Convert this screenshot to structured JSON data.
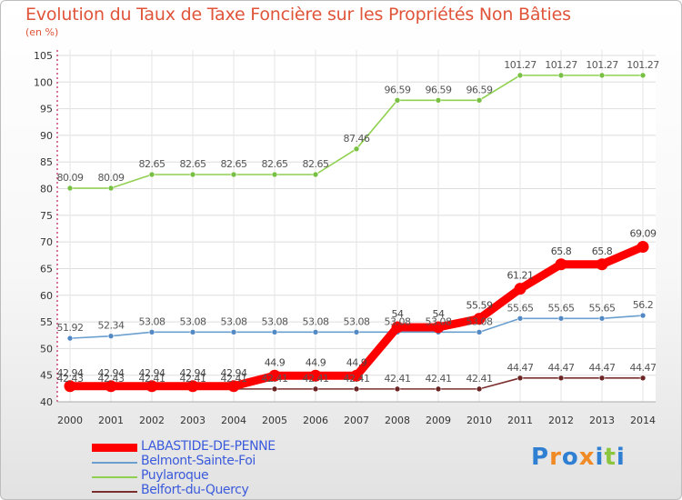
{
  "chart_data": {
    "type": "line",
    "title": "Evolution du Taux de Taxe Foncière sur les Propriétés Non Bâties",
    "subtitle": "(en %)",
    "xlabel": "",
    "ylabel": "",
    "ylim": [
      40,
      105
    ],
    "yticks": [
      40,
      45,
      50,
      55,
      60,
      65,
      70,
      75,
      80,
      85,
      90,
      95,
      100,
      105
    ],
    "grid": true,
    "categories": [
      "2000",
      "2001",
      "2002",
      "2003",
      "2004",
      "2005",
      "2006",
      "2007",
      "2008",
      "2009",
      "2010",
      "2011",
      "2012",
      "2013",
      "2014"
    ],
    "series": [
      {
        "name": "Puylaroque",
        "color": "#8fd14f",
        "point_color": "#78c043",
        "label_color": "#555555",
        "emphasis": false,
        "values": [
          80.09,
          80.09,
          82.65,
          82.65,
          82.65,
          82.65,
          82.65,
          87.46,
          96.59,
          96.59,
          96.59,
          101.27,
          101.27,
          101.27,
          101.27
        ],
        "labels": [
          "80.09",
          "80.09",
          "82.65",
          "82.65",
          "82.65",
          "82.65",
          "82.65",
          "87.46",
          "96.59",
          "96.59",
          "96.59",
          "101.27",
          "101.27",
          "101.27",
          "101.27"
        ]
      },
      {
        "name": "Belmont-Sainte-Foi",
        "color": "#6a9fd0",
        "point_color": "#5289c4",
        "label_color": "#555555",
        "emphasis": false,
        "values": [
          51.92,
          52.34,
          53.08,
          53.08,
          53.08,
          53.08,
          53.08,
          53.08,
          53.08,
          53.08,
          53.08,
          55.65,
          55.65,
          55.65,
          56.2
        ],
        "labels": [
          "51.92",
          "52.34",
          "53.08",
          "53.08",
          "53.08",
          "53.08",
          "53.08",
          "53.08",
          "53.08",
          "53.08",
          "53.08",
          "55.65",
          "55.65",
          "55.65",
          "56.2"
        ]
      },
      {
        "name": "Belfort-du-Quercy",
        "color": "#7a2e2e",
        "point_color": "#6a2424",
        "label_color": "#555555",
        "emphasis": false,
        "values": [
          42.43,
          42.43,
          42.41,
          42.41,
          42.41,
          42.41,
          42.41,
          42.41,
          42.41,
          42.41,
          42.41,
          44.47,
          44.47,
          44.47,
          44.47
        ],
        "labels": [
          "42.43",
          "42.43",
          "42.41",
          "42.41",
          "42.41",
          "42.41",
          "42.41",
          "42.41",
          "42.41",
          "42.41",
          "42.41",
          "44.47",
          "44.47",
          "44.47",
          "44.47"
        ]
      },
      {
        "name": "LABASTIDE-DE-PENNE",
        "color": "#ff0000",
        "point_color": "#ff0000",
        "label_color": "#444444",
        "emphasis": true,
        "values": [
          42.94,
          42.94,
          42.94,
          42.94,
          42.94,
          44.9,
          44.9,
          44.9,
          54.0,
          54.0,
          55.59,
          61.21,
          65.8,
          65.8,
          69.09
        ],
        "labels": [
          "42.94",
          "42.94",
          "42.94",
          "42.94",
          "42.94",
          "44.9",
          "44.9",
          "44.9",
          "54",
          "54",
          "55.59",
          "61.21",
          "65.8",
          "65.8",
          "69.09"
        ]
      }
    ],
    "legend_order": [
      "LABASTIDE-DE-PENNE",
      "Belmont-Sainte-Foi",
      "Puylaroque",
      "Belfort-du-Quercy"
    ],
    "legend_placement": "bottom-left"
  },
  "legend": {
    "items": [
      {
        "label": "LABASTIDE-DE-PENNE",
        "color": "#ff0000",
        "text_color": "#3b5bdb",
        "emphasis": true
      },
      {
        "label": "Belmont-Sainte-Foi",
        "color": "#6a9fd0",
        "text_color": "#3b5bdb",
        "emphasis": false
      },
      {
        "label": "Puylaroque",
        "color": "#8fd14f",
        "text_color": "#3b5bdb",
        "emphasis": false
      },
      {
        "label": "Belfort-du-Quercy",
        "color": "#7a2e2e",
        "text_color": "#3b5bdb",
        "emphasis": false
      }
    ]
  },
  "logo": {
    "text": "Proxiti",
    "letters": [
      "P",
      "r",
      "o",
      "x",
      "i",
      "t",
      "i"
    ],
    "letter_colors": [
      "#2f7fd3",
      "#f08a24",
      "#2f7fd3",
      "#f08a24",
      "#2f7fd3",
      "#8cc63f",
      "#2f7fd3"
    ]
  }
}
